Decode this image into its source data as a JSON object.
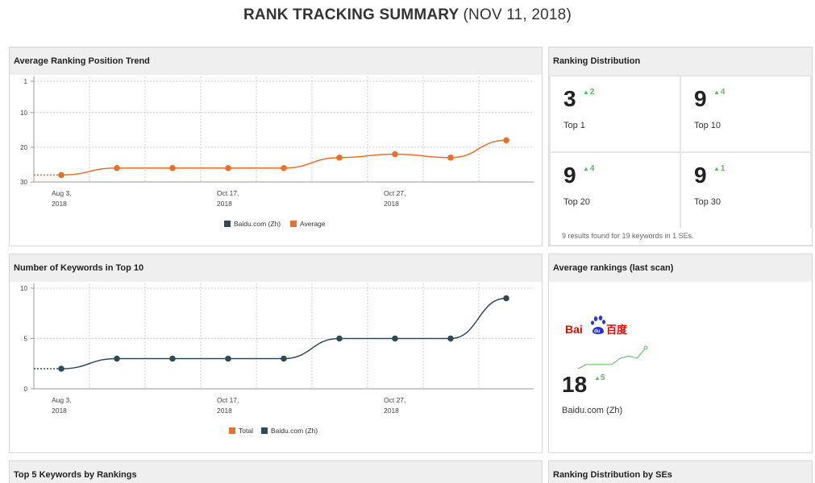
{
  "page": {
    "title_main": "RANK TRACKING SUMMARY",
    "title_date": "(NOV 11, 2018)"
  },
  "colors": {
    "average": "#e8702a",
    "baidu": "#2e4a56",
    "positive": "#5cb85c",
    "grid": "#d0d0d0",
    "panel_header_bg": "#efefef"
  },
  "avg_trend": {
    "title": "Average Ranking Position Trend",
    "legend": [
      "Baidu.com (Zh)",
      "Average"
    ],
    "x_ticks": [
      {
        "line1": "Aug 3,",
        "line2": "2018"
      },
      {
        "line1": "Oct 17,",
        "line2": "2018"
      },
      {
        "line1": "Oct 27,",
        "line2": "2018"
      }
    ],
    "y_ticks": [
      "1",
      "10",
      "20",
      "30"
    ]
  },
  "keywords_top10": {
    "title": "Number of Keywords in Top 10",
    "legend": [
      "Total",
      "Baidu.com (Zh)"
    ],
    "x_ticks": [
      {
        "line1": "Aug 3,",
        "line2": "2018"
      },
      {
        "line1": "Oct 17,",
        "line2": "2018"
      },
      {
        "line1": "Oct 27,",
        "line2": "2018"
      }
    ],
    "y_ticks": [
      "10",
      "5",
      "0"
    ]
  },
  "chart_data": [
    {
      "type": "line",
      "title": "Average Ranking Position Trend",
      "x": [
        "Aug 3, 2018",
        "",
        "",
        "Oct 17, 2018",
        "",
        "",
        "Oct 27, 2018",
        "",
        ""
      ],
      "series": [
        {
          "name": "Average",
          "values": [
            28,
            26,
            26,
            26,
            26,
            23,
            22,
            23,
            18
          ]
        }
      ],
      "y_reversed": true,
      "ylim": [
        1,
        30
      ],
      "y_ticks": [
        1,
        10,
        20,
        30
      ],
      "grid": true,
      "legend_position": "bottom"
    },
    {
      "type": "line",
      "title": "Number of Keywords in Top 10",
      "x": [
        "Aug 3, 2018",
        "",
        "",
        "Oct 17, 2018",
        "",
        "",
        "Oct 27, 2018",
        "",
        ""
      ],
      "series": [
        {
          "name": "Baidu.com (Zh)",
          "values": [
            2,
            3,
            3,
            3,
            3,
            5,
            5,
            5,
            9
          ]
        }
      ],
      "ylim": [
        0,
        10
      ],
      "y_ticks": [
        0,
        5,
        10
      ],
      "grid": true,
      "legend_position": "bottom"
    }
  ],
  "ranking_distribution": {
    "title": "Ranking Distribution",
    "cells": [
      {
        "value": "3",
        "delta": "2",
        "label": "Top 1"
      },
      {
        "value": "9",
        "delta": "4",
        "label": "Top 10"
      },
      {
        "value": "9",
        "delta": "4",
        "label": "Top 20"
      },
      {
        "value": "9",
        "delta": "1",
        "label": "Top 30"
      }
    ],
    "footer": "9 results found for 19 keywords in 1 SEs."
  },
  "average_rankings": {
    "title": "Average rankings (last scan)",
    "logo_text_latin": "Bai",
    "logo_text_paw": "du",
    "logo_text_cjk": "百度",
    "value": "18",
    "delta": "5",
    "label": "Baidu.com (Zh)",
    "sparkline": [
      28,
      26,
      26,
      26,
      26,
      23,
      22,
      23,
      18
    ]
  },
  "bottom_panels": {
    "top5_title": "Top 5 Keywords by Rankings",
    "by_ses_title": "Ranking Distribution by SEs"
  }
}
